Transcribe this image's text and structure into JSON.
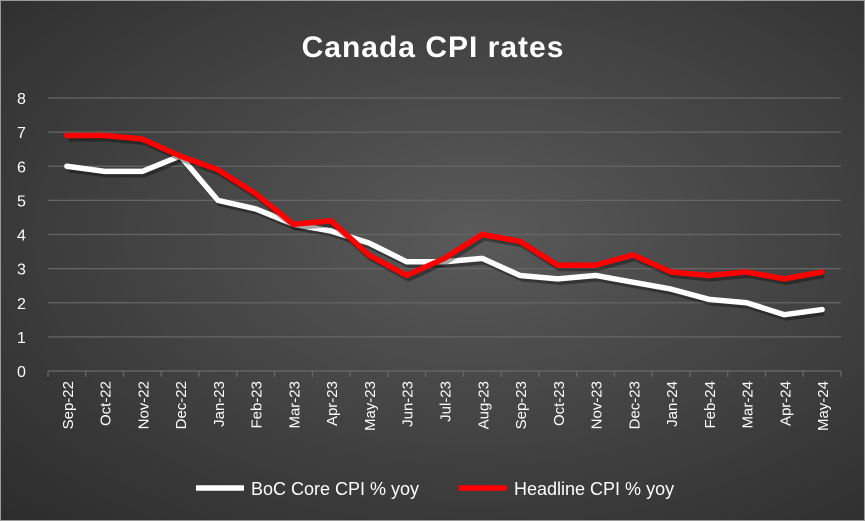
{
  "chart_data": {
    "type": "line",
    "title": "Canada CPI rates",
    "xlabel": "",
    "ylabel": "",
    "ylim": [
      0,
      8
    ],
    "yticks": [
      "0",
      "1",
      "2",
      "3",
      "4",
      "5",
      "6",
      "7",
      "8"
    ],
    "grid": true,
    "legend_position": "bottom",
    "categories": [
      "Sep-22",
      "Oct-22",
      "Nov-22",
      "Dec-22",
      "Jan-23",
      "Feb-23",
      "Mar-23",
      "Apr-23",
      "May-23",
      "Jun-23",
      "Jul-23",
      "Aug-23",
      "Sep-23",
      "Oct-23",
      "Nov-23",
      "Dec-23",
      "Jan-24",
      "Feb-24",
      "Mar-24",
      "Apr-24",
      "May-24"
    ],
    "series": [
      {
        "name": "BoC Core CPI % yoy",
        "color": "#ffffff",
        "values": [
          6.0,
          5.85,
          5.85,
          6.3,
          5.0,
          4.75,
          4.3,
          4.1,
          3.75,
          3.2,
          3.2,
          3.3,
          2.8,
          2.7,
          2.8,
          2.6,
          2.4,
          2.1,
          2.0,
          1.65,
          1.8
        ]
      },
      {
        "name": "Headline CPI % yoy",
        "color": "#ff0000",
        "values": [
          6.9,
          6.9,
          6.8,
          6.3,
          5.9,
          5.2,
          4.3,
          4.4,
          3.4,
          2.8,
          3.3,
          4.0,
          3.8,
          3.1,
          3.1,
          3.4,
          2.9,
          2.8,
          2.9,
          2.7,
          2.9
        ]
      }
    ]
  }
}
